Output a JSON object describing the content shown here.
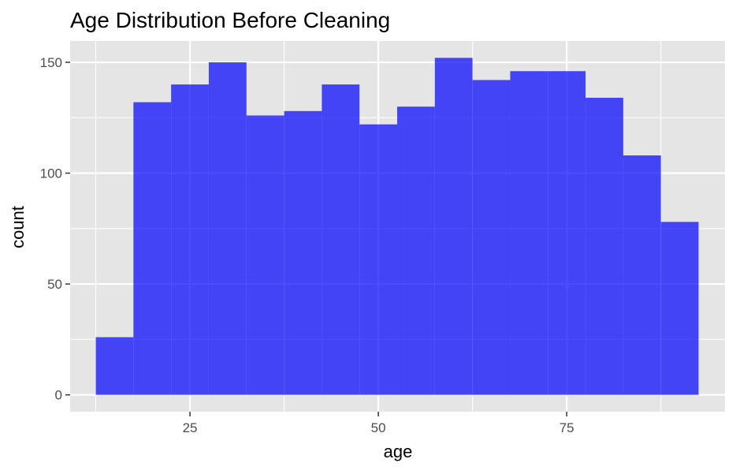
{
  "chart_data": {
    "type": "bar",
    "title": "Age Distribution Before Cleaning",
    "xlabel": "age",
    "ylabel": "count",
    "bin_width": 5,
    "bins": [
      {
        "x_start": 12.5,
        "x_end": 17.5,
        "count": 26
      },
      {
        "x_start": 17.5,
        "x_end": 22.5,
        "count": 132
      },
      {
        "x_start": 22.5,
        "x_end": 27.5,
        "count": 140
      },
      {
        "x_start": 27.5,
        "x_end": 32.5,
        "count": 150
      },
      {
        "x_start": 32.5,
        "x_end": 37.5,
        "count": 126
      },
      {
        "x_start": 37.5,
        "x_end": 42.5,
        "count": 128
      },
      {
        "x_start": 42.5,
        "x_end": 47.5,
        "count": 140
      },
      {
        "x_start": 47.5,
        "x_end": 52.5,
        "count": 122
      },
      {
        "x_start": 52.5,
        "x_end": 57.5,
        "count": 130
      },
      {
        "x_start": 57.5,
        "x_end": 62.5,
        "count": 152
      },
      {
        "x_start": 62.5,
        "x_end": 67.5,
        "count": 142
      },
      {
        "x_start": 67.5,
        "x_end": 72.5,
        "count": 146
      },
      {
        "x_start": 72.5,
        "x_end": 77.5,
        "count": 146
      },
      {
        "x_start": 77.5,
        "x_end": 82.5,
        "count": 134
      },
      {
        "x_start": 82.5,
        "x_end": 87.5,
        "count": 108
      },
      {
        "x_start": 87.5,
        "x_end": 92.5,
        "count": 78
      }
    ],
    "xlim": [
      9.1,
      96.0
    ],
    "ylim": [
      -7.6,
      159.6
    ],
    "x_ticks": [
      25,
      50,
      75
    ],
    "x_tick_labels": [
      "25",
      "50",
      "75"
    ],
    "y_ticks": [
      0,
      50,
      100,
      150
    ],
    "y_tick_labels": [
      "0",
      "50",
      "100",
      "150"
    ],
    "grid": true,
    "legend": "none",
    "colors": {
      "bar_fill": "#0000ff",
      "bar_opacity": "0.7",
      "panel_background": "#e5e5e5",
      "gridline": "#ffffff",
      "tick_label": "#4d4d4d"
    }
  }
}
